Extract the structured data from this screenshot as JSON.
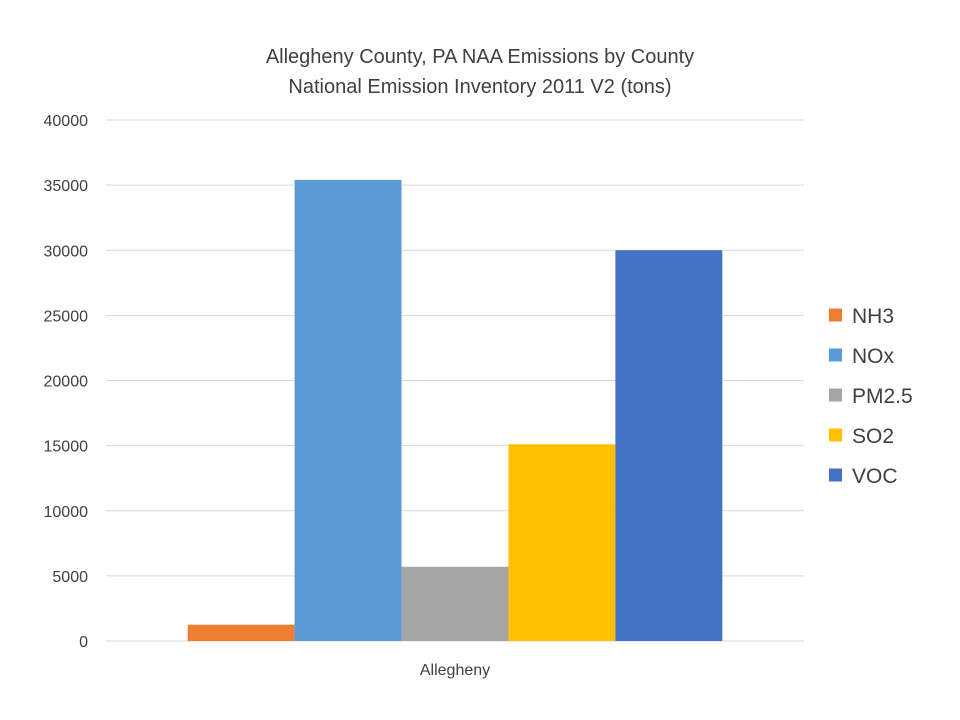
{
  "chart_data": {
    "type": "bar",
    "title": "Allegheny County, PA NAA Emissions by County",
    "subtitle": "National Emission Inventory 2011 V2 (tons)",
    "categories": [
      "Allegheny"
    ],
    "series": [
      {
        "name": "NH3",
        "values": [
          1250
        ],
        "color": "#ed7d31"
      },
      {
        "name": "NOx",
        "values": [
          35400
        ],
        "color": "#5b9bd5"
      },
      {
        "name": "PM2.5",
        "values": [
          5700
        ],
        "color": "#a5a5a5"
      },
      {
        "name": "SO2",
        "values": [
          15100
        ],
        "color": "#ffc000"
      },
      {
        "name": "VOC",
        "values": [
          30000
        ],
        "color": "#4472c4"
      }
    ],
    "ylim": [
      0,
      40000
    ],
    "yticks": [
      "0",
      "5000",
      "10000",
      "15000",
      "20000",
      "25000",
      "30000",
      "35000",
      "40000"
    ],
    "xlabel": "",
    "ylabel": "",
    "grid": true,
    "legend_position": "right"
  }
}
